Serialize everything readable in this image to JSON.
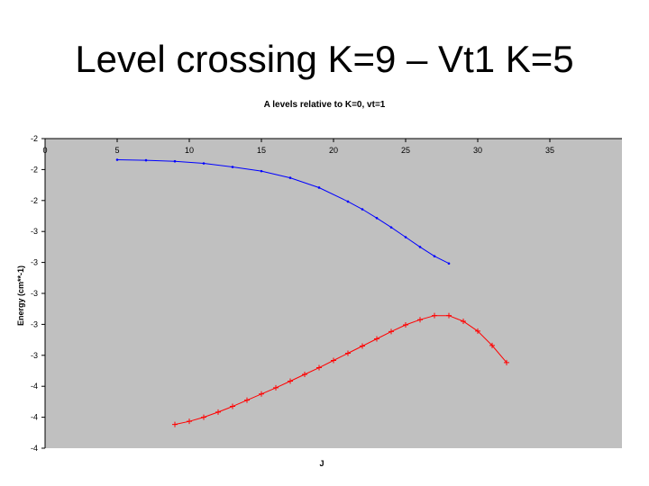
{
  "slide": {
    "title": "Level crossing K=9 – Vt1 K=5"
  },
  "chart_data": {
    "type": "line",
    "title": "A levels relative to K=0, vt=1",
    "xlabel": "J",
    "ylabel": "Energy (cm**-1)",
    "x_ticks": [
      "0",
      "5",
      "10",
      "15",
      "20",
      "25",
      "30",
      "35"
    ],
    "y_tick_labels": [
      "-2",
      "-2",
      "-2",
      "-3",
      "-3",
      "-3",
      "-3",
      "-3",
      "-4",
      "-4",
      "-4"
    ],
    "grid": false,
    "legend": "none",
    "background_color": "#c0c0c0",
    "series": [
      {
        "color": "#0000ff",
        "marker": "dot",
        "x": [
          5,
          7,
          9,
          11,
          13,
          15,
          17,
          19,
          21,
          22,
          23,
          24,
          25,
          26,
          27,
          28
        ],
        "y": [
          -2.41,
          -2.42,
          -2.44,
          -2.48,
          -2.55,
          -2.63,
          -2.76,
          -2.95,
          -3.22,
          -3.37,
          -3.54,
          -3.72,
          -3.91,
          -4.1,
          -4.28,
          -4.42
        ]
      },
      {
        "color": "#ff0000",
        "marker": "plus",
        "x": [
          9,
          10,
          11,
          12,
          13,
          14,
          15,
          16,
          17,
          18,
          19,
          20,
          21,
          22,
          23,
          24,
          25,
          26,
          27,
          28,
          29,
          30,
          31,
          32
        ],
        "y": [
          -7.54,
          -7.48,
          -7.4,
          -7.3,
          -7.19,
          -7.07,
          -6.95,
          -6.83,
          -6.7,
          -6.57,
          -6.44,
          -6.3,
          -6.16,
          -6.02,
          -5.88,
          -5.74,
          -5.61,
          -5.51,
          -5.43,
          -5.43,
          -5.54,
          -5.73,
          -6.01,
          -6.34
        ]
      }
    ]
  }
}
